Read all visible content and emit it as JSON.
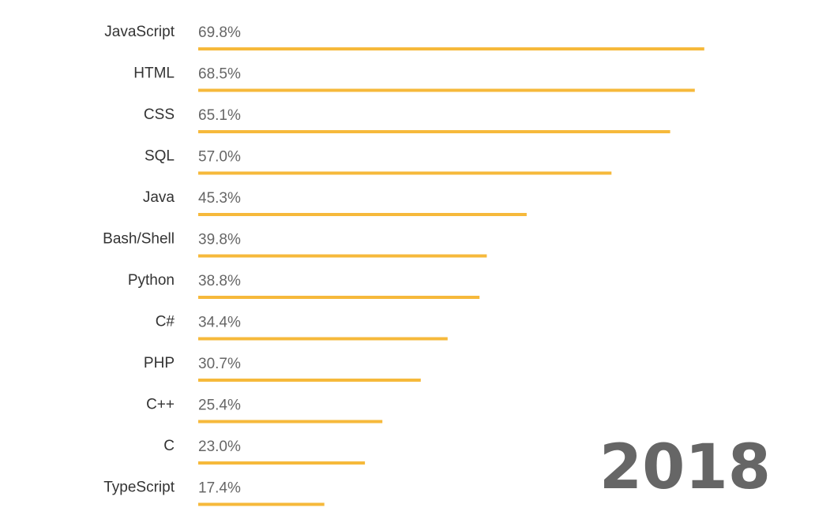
{
  "chart_data": {
    "type": "bar",
    "orientation": "horizontal",
    "categories": [
      "JavaScript",
      "HTML",
      "CSS",
      "SQL",
      "Java",
      "Bash/Shell",
      "Python",
      "C#",
      "PHP",
      "C++",
      "C",
      "TypeScript"
    ],
    "values": [
      69.8,
      68.5,
      65.1,
      57.0,
      45.3,
      39.8,
      38.8,
      34.4,
      30.7,
      25.4,
      23.0,
      17.4
    ],
    "value_labels": [
      "69.8%",
      "68.5%",
      "65.1%",
      "57.0%",
      "45.3%",
      "39.8%",
      "38.8%",
      "34.4%",
      "30.7%",
      "25.4%",
      "23.0%",
      "17.4%"
    ],
    "annotation": "2018",
    "bar_color": "#F6B93B",
    "xlim": [
      0,
      100
    ],
    "grid": false,
    "legend": "none"
  }
}
